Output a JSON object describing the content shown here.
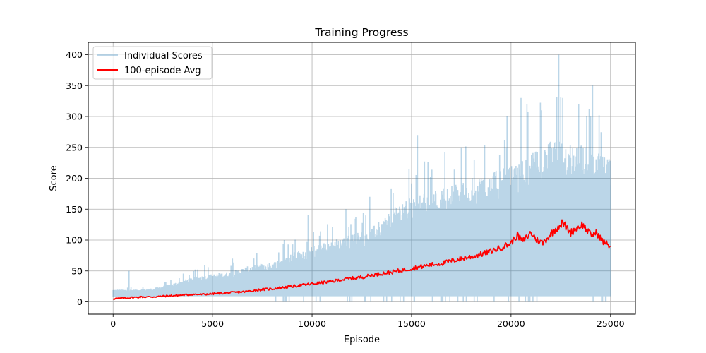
{
  "chart_data": {
    "type": "line",
    "title": "Training Progress",
    "xlabel": "Episode",
    "ylabel": "Score",
    "xlim": [
      -1250,
      26250
    ],
    "ylim": [
      -20,
      420
    ],
    "xticks": [
      0,
      5000,
      10000,
      15000,
      20000,
      25000
    ],
    "yticks": [
      0,
      50,
      100,
      150,
      200,
      250,
      300,
      350,
      400
    ],
    "grid": true,
    "legend_position": "top-left",
    "series": [
      {
        "name": "Individual Scores",
        "color": "#1f77b4",
        "alpha": 0.3,
        "style": "noisy-band",
        "x": [
          0,
          1000,
          2000,
          3000,
          4000,
          5000,
          6000,
          7000,
          8000,
          9000,
          10000,
          11000,
          12000,
          13000,
          14000,
          15000,
          16000,
          17000,
          18000,
          19000,
          20000,
          21000,
          22000,
          23000,
          24000,
          25000
        ],
        "low": [
          8,
          8,
          8,
          9,
          9,
          9,
          9,
          9,
          9,
          9,
          9,
          9,
          9,
          9,
          9,
          9,
          9,
          9,
          9,
          9,
          9,
          9,
          9,
          9,
          9,
          9
        ],
        "typical_high": [
          20,
          20,
          22,
          30,
          40,
          45,
          50,
          60,
          65,
          80,
          90,
          100,
          110,
          120,
          150,
          170,
          180,
          190,
          200,
          210,
          220,
          240,
          260,
          260,
          250,
          230
        ],
        "peaks": [
          {
            "x": 800,
            "y": 50
          },
          {
            "x": 4600,
            "y": 60
          },
          {
            "x": 6000,
            "y": 70
          },
          {
            "x": 8600,
            "y": 100
          },
          {
            "x": 9800,
            "y": 140
          },
          {
            "x": 11700,
            "y": 150
          },
          {
            "x": 12900,
            "y": 170
          },
          {
            "x": 15300,
            "y": 270
          },
          {
            "x": 17500,
            "y": 250
          },
          {
            "x": 19800,
            "y": 300
          },
          {
            "x": 20500,
            "y": 330
          },
          {
            "x": 20800,
            "y": 320
          },
          {
            "x": 21500,
            "y": 310
          },
          {
            "x": 22400,
            "y": 400
          },
          {
            "x": 22600,
            "y": 330
          },
          {
            "x": 23400,
            "y": 320
          },
          {
            "x": 23800,
            "y": 300
          },
          {
            "x": 24100,
            "y": 350
          }
        ]
      },
      {
        "name": "100-episode Avg",
        "color": "#ff0000",
        "x": [
          0,
          500,
          1000,
          1500,
          2000,
          2500,
          3000,
          3500,
          4000,
          4500,
          5000,
          5500,
          6000,
          6500,
          7000,
          7500,
          8000,
          8500,
          9000,
          9500,
          10000,
          10500,
          11000,
          11500,
          12000,
          12500,
          13000,
          13500,
          14000,
          14500,
          15000,
          15500,
          16000,
          16500,
          17000,
          17500,
          18000,
          18500,
          19000,
          19500,
          20000,
          20300,
          20600,
          21000,
          21300,
          21600,
          22000,
          22300,
          22600,
          23000,
          23300,
          23600,
          24000,
          24300,
          24600,
          25000
        ],
        "y": [
          5,
          6,
          7,
          8,
          8,
          9,
          10,
          11,
          12,
          12,
          13,
          14,
          15,
          16,
          18,
          20,
          21,
          23,
          25,
          27,
          29,
          31,
          33,
          36,
          38,
          40,
          43,
          46,
          48,
          51,
          54,
          57,
          60,
          62,
          66,
          70,
          73,
          77,
          82,
          88,
          95,
          108,
          98,
          112,
          100,
          95,
          110,
          120,
          128,
          112,
          120,
          125,
          108,
          112,
          98,
          90
        ]
      }
    ]
  }
}
